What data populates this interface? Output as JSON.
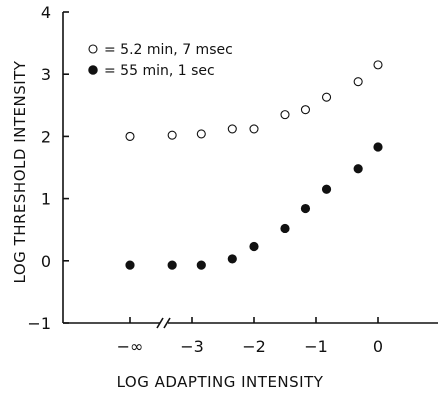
{
  "chart_data": {
    "type": "scatter",
    "xlabel": "LOG ADAPTING INTENSITY",
    "ylabel": "LOG THRESHOLD INTENSITY",
    "xlim": [
      -4.0,
      0.35
    ],
    "ylim": [
      -1,
      4
    ],
    "x_ticks": [
      {
        "value": -4,
        "label": "−∞"
      },
      {
        "value": -3,
        "label": "−3"
      },
      {
        "value": -2,
        "label": "−2"
      },
      {
        "value": -1,
        "label": "−1"
      },
      {
        "value": 0,
        "label": "0"
      }
    ],
    "y_ticks": [
      {
        "value": -1,
        "label": "−1"
      },
      {
        "value": 0,
        "label": "0"
      },
      {
        "value": 1,
        "label": "1"
      },
      {
        "value": 2,
        "label": "2"
      },
      {
        "value": 3,
        "label": "3"
      },
      {
        "value": 4,
        "label": "4"
      }
    ],
    "axis_break": "x-axis between −∞ and −3",
    "grid": false,
    "legend_position": "top-left",
    "series": [
      {
        "name": "= 5.2 min, 7 msec",
        "marker": "open-circle",
        "points": [
          {
            "x": -4.0,
            "y": 2.0
          },
          {
            "x": -3.32,
            "y": 2.02
          },
          {
            "x": -2.85,
            "y": 2.04
          },
          {
            "x": -2.35,
            "y": 2.12
          },
          {
            "x": -2.0,
            "y": 2.12
          },
          {
            "x": -1.5,
            "y": 2.35
          },
          {
            "x": -1.17,
            "y": 2.43
          },
          {
            "x": -0.83,
            "y": 2.63
          },
          {
            "x": -0.32,
            "y": 2.88
          },
          {
            "x": 0.0,
            "y": 3.15
          }
        ]
      },
      {
        "name": "=   55 min, 1 sec",
        "marker": "filled-circle",
        "points": [
          {
            "x": -4.0,
            "y": -0.07
          },
          {
            "x": -3.32,
            "y": -0.07
          },
          {
            "x": -2.85,
            "y": -0.07
          },
          {
            "x": -2.35,
            "y": 0.03
          },
          {
            "x": -2.0,
            "y": 0.23
          },
          {
            "x": -1.5,
            "y": 0.52
          },
          {
            "x": -1.17,
            "y": 0.84
          },
          {
            "x": -0.83,
            "y": 1.15
          },
          {
            "x": -0.32,
            "y": 1.48
          },
          {
            "x": 0.0,
            "y": 1.83
          }
        ]
      }
    ]
  }
}
